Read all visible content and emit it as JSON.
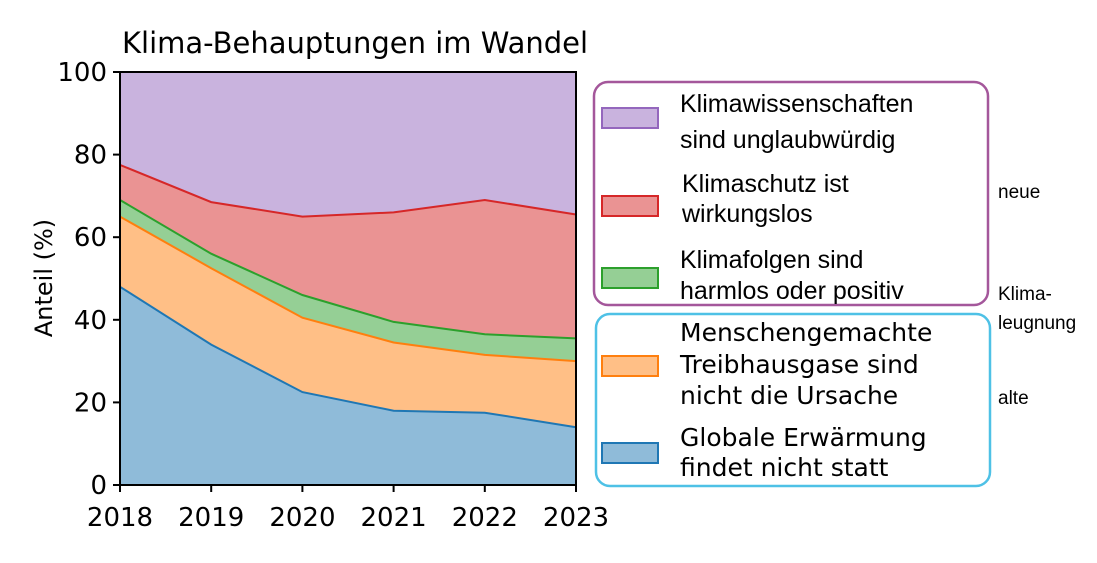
{
  "chart_data": {
    "type": "area",
    "stacked": true,
    "title": "Klima-Behauptungen im Wandel",
    "xlabel": "",
    "ylabel": "Anteil (%)",
    "x": [
      2018,
      2019,
      2020,
      2021,
      2022,
      2023
    ],
    "x_ticks": [
      "2018",
      "2019",
      "2020",
      "2021",
      "2022",
      "2023"
    ],
    "y_ticks": [
      "0",
      "20",
      "40",
      "60",
      "80",
      "100"
    ],
    "xlim": [
      2018,
      2023
    ],
    "ylim": [
      0,
      100
    ],
    "grid": false,
    "series": [
      {
        "name": "Globale Erwärmung findet nicht statt",
        "color": "#1f77b4",
        "values": [
          48,
          34,
          22.5,
          18,
          17.5,
          14
        ]
      },
      {
        "name": "Menschengemachte Treibhausgase sind nicht die Ursache",
        "color": "#ff7f0e",
        "values": [
          17,
          18.5,
          18,
          16.5,
          14,
          16
        ]
      },
      {
        "name": "Klimafolgen sind harmlos oder positiv",
        "color": "#2ca02c",
        "values": [
          4,
          3.5,
          5.5,
          5,
          5,
          5.5
        ]
      },
      {
        "name": "Klimaschutz ist wirkungslos",
        "color": "#d62728",
        "values": [
          8.5,
          12.5,
          19,
          26.5,
          32.5,
          30
        ]
      },
      {
        "name": "Klimawissenschaften sind unglaubwürdig",
        "color": "#9467bd",
        "values": [
          22.5,
          31.5,
          35,
          34,
          31,
          34.5
        ]
      }
    ],
    "legend_placement": "right",
    "legend_groups": [
      {
        "label": [
          "neue",
          "Klima-"
        ],
        "color": "#a4579b",
        "series": [
          4,
          3,
          2
        ]
      },
      {
        "label": [
          "leugnung",
          "alte"
        ],
        "color": "#4ec1e6",
        "series": [
          1,
          0
        ]
      }
    ],
    "legend_lines": [
      [
        "Klimawissenschaften",
        "sind unglaubwürdig"
      ],
      [
        "Klimaschutz ist",
        "wirkungslos"
      ],
      [
        "Klimafolgen sind",
        "harmlos oder positiv"
      ],
      [
        "Menschengemachte",
        "Treibhausgase sind",
        "nicht die Ursache"
      ],
      [
        "Globale Erwärmung",
        "findet nicht statt"
      ]
    ]
  }
}
